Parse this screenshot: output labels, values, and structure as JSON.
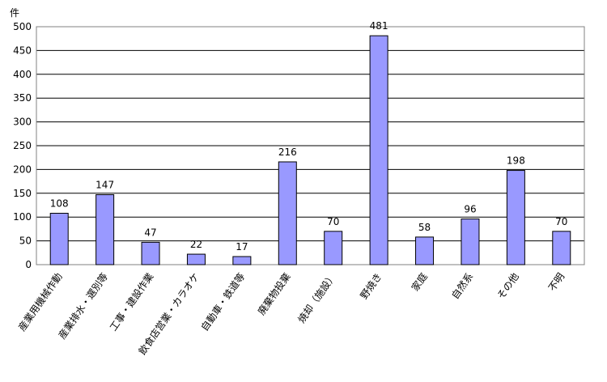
{
  "chart_data": {
    "type": "bar",
    "y_label": "件",
    "categories": [
      "産業用機械作動",
      "産業排水・選別等",
      "工事・建設作業",
      "飲食店営業・カラオケ",
      "自動車・鉄道等",
      "廃棄物投棄",
      "焼却（施設）",
      "野焼き",
      "家庭",
      "自然系",
      "その他",
      "不明"
    ],
    "values": [
      108,
      147,
      47,
      22,
      17,
      216,
      70,
      481,
      58,
      96,
      198,
      70
    ],
    "color": "#9999ff",
    "ylim": [
      0,
      500
    ],
    "yticks": [
      0,
      50,
      100,
      150,
      200,
      250,
      300,
      350,
      400,
      450,
      500
    ],
    "grid": true
  }
}
